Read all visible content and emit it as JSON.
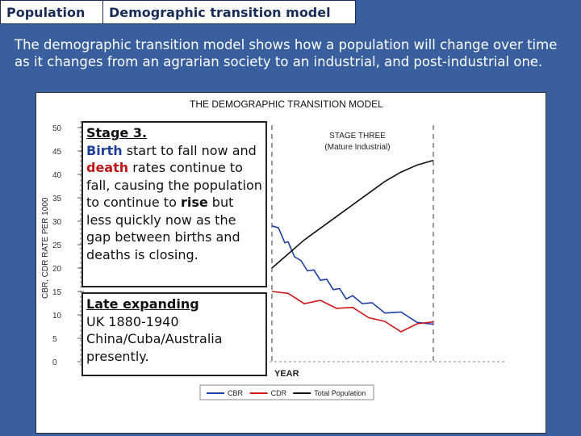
{
  "tabs": {
    "section": "Population",
    "title": "Demographic transition model"
  },
  "intro": "The demographic transition model shows how a population will change over time as it changes from an agrarian society to an industrial, and post-industrial one.",
  "callout_stage": {
    "heading": "Stage 3.",
    "w1": "Birth",
    "t1": " start to fall now and ",
    "w2": "death",
    "t2": " rates continue to fall, causing the population to continue to ",
    "w3": "rise",
    "t3": " but less quickly now as the gap between births and deaths is closing."
  },
  "callout_examples": {
    "heading": "Late expanding",
    "line1": "UK 1880-1940",
    "line2": "China/Cuba/Australia",
    "line3": "presently."
  },
  "chart_data": {
    "type": "line",
    "title": "THE DEMOGRAPHIC TRANSITION MODEL",
    "stage_label": "STAGE THREE",
    "stage_sub": "(Mature Industrial)",
    "xlabel": "YEAR",
    "ylabel": "CBR, CDR RATE PER 1000",
    "ylim": [
      0,
      50
    ],
    "yticks": [
      "0",
      "5",
      "10",
      "15",
      "20",
      "25",
      "30",
      "35",
      "40",
      "45",
      "50"
    ],
    "series": [
      {
        "name": "CBR",
        "color": "#1f3fa8",
        "x": [
          0,
          4,
          8,
          10,
          14,
          18,
          22,
          26,
          30,
          34,
          38,
          42,
          46,
          50,
          56,
          62,
          70,
          80,
          90,
          100
        ],
        "y": [
          29,
          28,
          26,
          25,
          23,
          21,
          20,
          19,
          18,
          17,
          16,
          15,
          14,
          13.5,
          13,
          12,
          11,
          10,
          9,
          8
        ]
      },
      {
        "name": "CDR",
        "color": "#d01818",
        "x": [
          0,
          10,
          20,
          30,
          40,
          50,
          60,
          70,
          80,
          90,
          100
        ],
        "y": [
          15,
          14,
          13,
          12.5,
          12,
          11,
          10,
          8,
          7,
          7.5,
          8.5
        ]
      },
      {
        "name": "Total Population",
        "color": "#111111",
        "x": [
          0,
          10,
          20,
          30,
          40,
          50,
          60,
          70,
          80,
          90,
          100
        ],
        "y": [
          20,
          23,
          26,
          28.5,
          31,
          33.5,
          36,
          38.5,
          40.5,
          42,
          43
        ]
      }
    ],
    "legend": [
      "CBR",
      "CDR",
      "Total Population"
    ],
    "legend_position": "bottom"
  }
}
